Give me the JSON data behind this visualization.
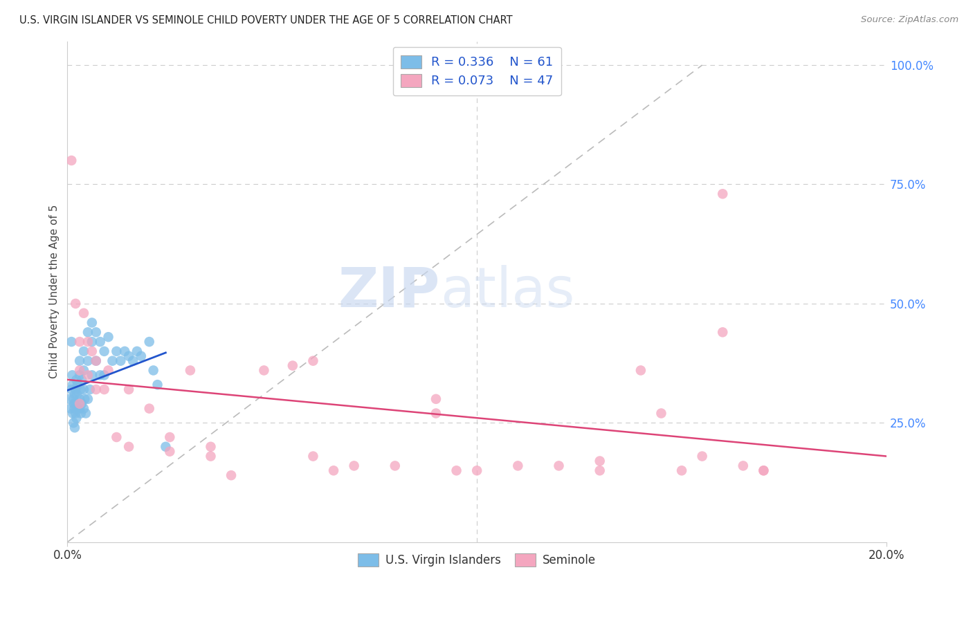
{
  "title": "U.S. VIRGIN ISLANDER VS SEMINOLE CHILD POVERTY UNDER THE AGE OF 5 CORRELATION CHART",
  "source": "Source: ZipAtlas.com",
  "ylabel": "Child Poverty Under the Age of 5",
  "watermark_zip": "ZIP",
  "watermark_atlas": "atlas",
  "legend_blue_label": "U.S. Virgin Islanders",
  "legend_pink_label": "Seminole",
  "blue_R": "0.336",
  "blue_N": "61",
  "pink_R": "0.073",
  "pink_N": "47",
  "blue_color": "#7dbde8",
  "pink_color": "#f4a6bf",
  "blue_line_color": "#2255cc",
  "pink_line_color": "#dd4477",
  "ref_line_color": "#bbbbbb",
  "xlim": [
    0.0,
    0.2
  ],
  "ylim": [
    0.0,
    1.05
  ],
  "yticks_right": [
    0.25,
    0.5,
    0.75,
    1.0
  ],
  "grid_color": "#cccccc",
  "bg_color": "#ffffff",
  "blue_x": [
    0.0005,
    0.0008,
    0.001,
    0.001,
    0.0012,
    0.0013,
    0.0013,
    0.0015,
    0.0015,
    0.0016,
    0.0017,
    0.0018,
    0.0018,
    0.002,
    0.002,
    0.002,
    0.0022,
    0.0022,
    0.0023,
    0.0025,
    0.0025,
    0.003,
    0.003,
    0.003,
    0.003,
    0.0032,
    0.0033,
    0.0035,
    0.0035,
    0.004,
    0.004,
    0.004,
    0.004,
    0.0042,
    0.0045,
    0.005,
    0.005,
    0.005,
    0.0055,
    0.006,
    0.006,
    0.006,
    0.007,
    0.007,
    0.008,
    0.008,
    0.009,
    0.009,
    0.01,
    0.011,
    0.012,
    0.013,
    0.014,
    0.015,
    0.016,
    0.017,
    0.018,
    0.02,
    0.021,
    0.022,
    0.024
  ],
  "blue_y": [
    0.3,
    0.28,
    0.32,
    0.42,
    0.35,
    0.27,
    0.33,
    0.3,
    0.25,
    0.29,
    0.28,
    0.31,
    0.24,
    0.32,
    0.29,
    0.27,
    0.34,
    0.26,
    0.31,
    0.28,
    0.33,
    0.38,
    0.35,
    0.3,
    0.28,
    0.32,
    0.27,
    0.34,
    0.29,
    0.4,
    0.36,
    0.32,
    0.28,
    0.3,
    0.27,
    0.44,
    0.38,
    0.3,
    0.32,
    0.46,
    0.42,
    0.35,
    0.44,
    0.38,
    0.42,
    0.35,
    0.4,
    0.35,
    0.43,
    0.38,
    0.4,
    0.38,
    0.4,
    0.39,
    0.38,
    0.4,
    0.39,
    0.42,
    0.36,
    0.33,
    0.2
  ],
  "pink_x": [
    0.001,
    0.002,
    0.003,
    0.003,
    0.004,
    0.005,
    0.006,
    0.007,
    0.009,
    0.01,
    0.012,
    0.015,
    0.02,
    0.025,
    0.03,
    0.035,
    0.04,
    0.048,
    0.055,
    0.06,
    0.065,
    0.07,
    0.08,
    0.09,
    0.095,
    0.1,
    0.11,
    0.12,
    0.13,
    0.14,
    0.145,
    0.15,
    0.155,
    0.16,
    0.165,
    0.17,
    0.003,
    0.005,
    0.007,
    0.015,
    0.025,
    0.035,
    0.06,
    0.09,
    0.13,
    0.16,
    0.17
  ],
  "pink_y": [
    0.8,
    0.5,
    0.36,
    0.42,
    0.48,
    0.35,
    0.4,
    0.38,
    0.32,
    0.36,
    0.22,
    0.32,
    0.28,
    0.22,
    0.36,
    0.18,
    0.14,
    0.36,
    0.37,
    0.38,
    0.15,
    0.16,
    0.16,
    0.27,
    0.15,
    0.15,
    0.16,
    0.16,
    0.15,
    0.36,
    0.27,
    0.15,
    0.18,
    0.44,
    0.16,
    0.15,
    0.29,
    0.42,
    0.32,
    0.2,
    0.19,
    0.2,
    0.18,
    0.3,
    0.17,
    0.73,
    0.15
  ]
}
